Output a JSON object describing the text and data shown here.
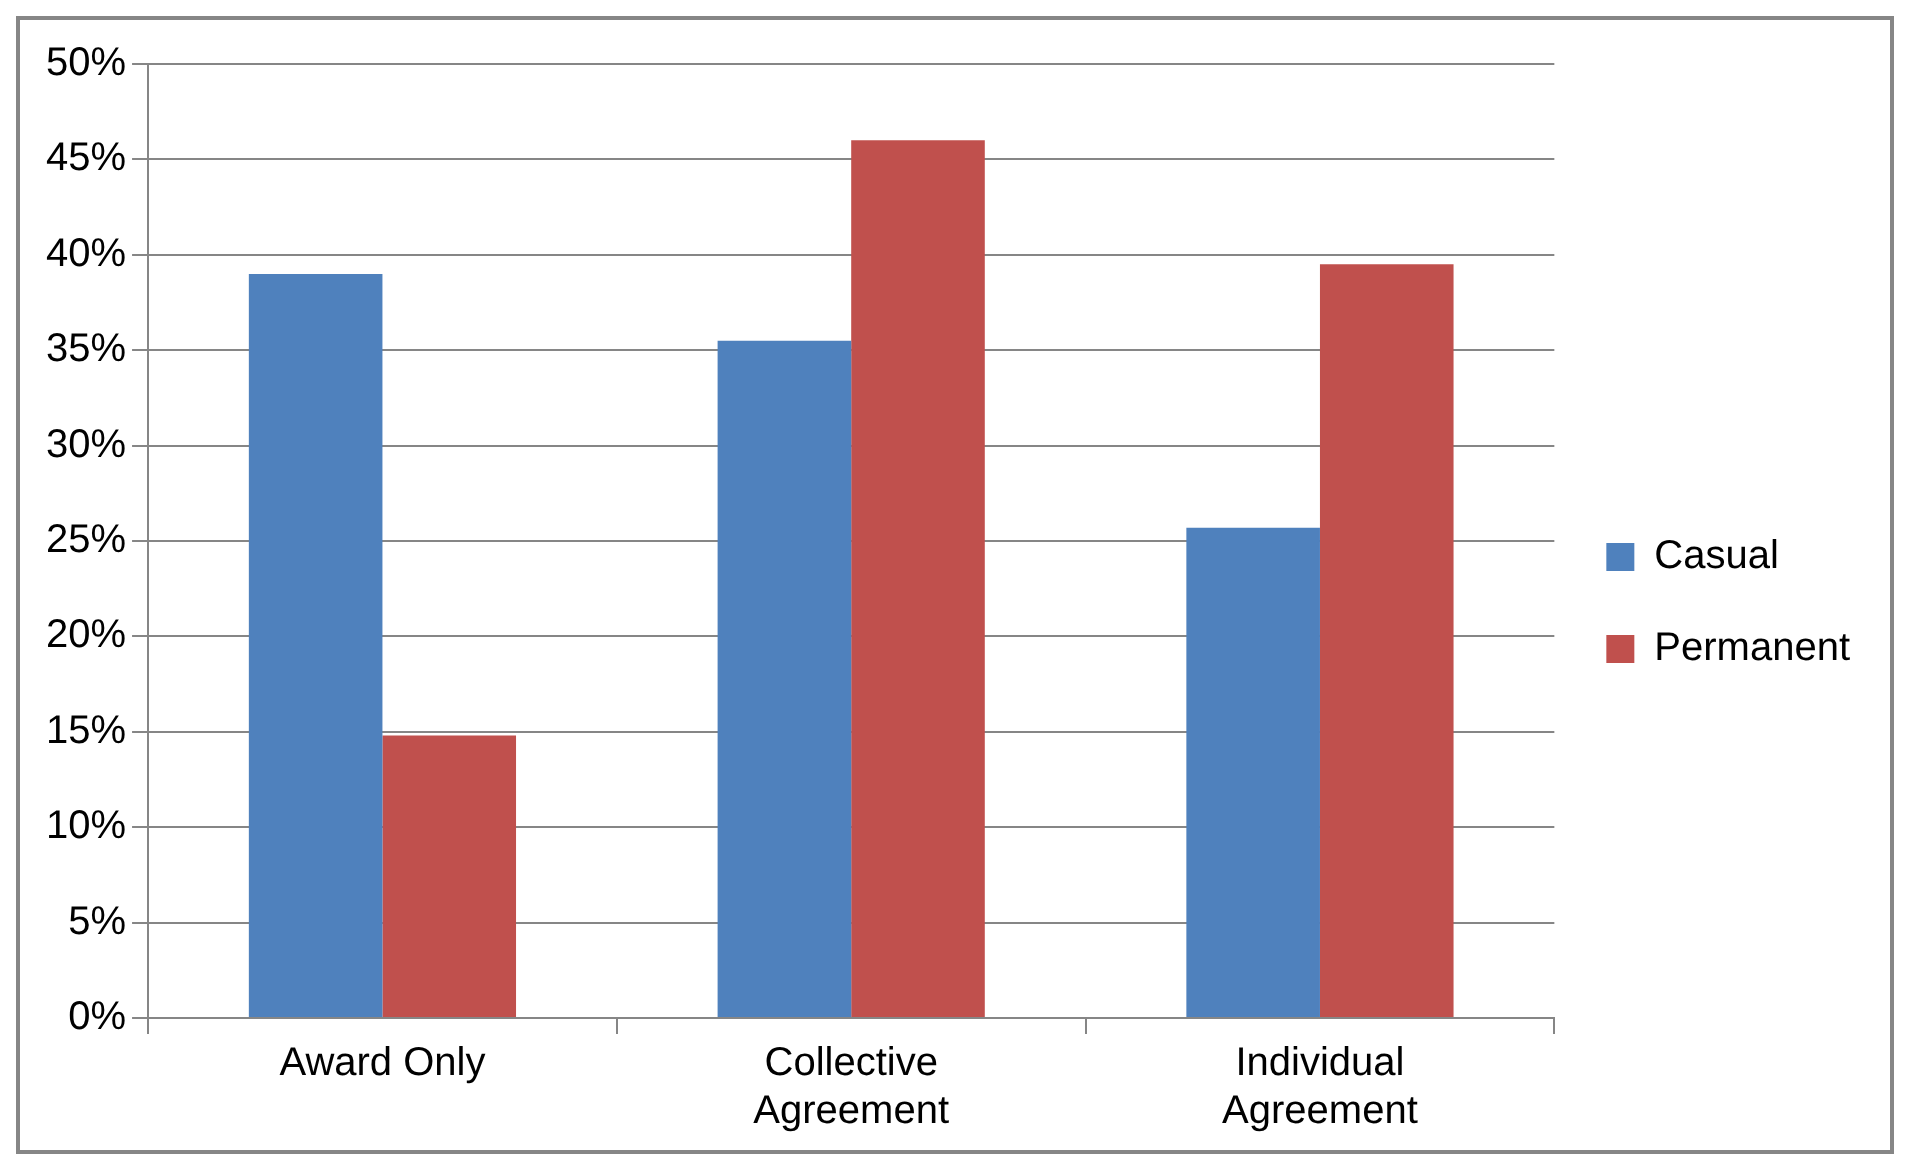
{
  "chart_data": {
    "type": "bar",
    "categories": [
      "Award Only",
      "Collective Agreement",
      "Individual Agreement"
    ],
    "series": [
      {
        "name": "Casual",
        "color": "#4f81bd",
        "values": [
          39,
          35.5,
          25.7
        ]
      },
      {
        "name": "Permanent",
        "color": "#c0504d",
        "values": [
          14.8,
          46,
          39.5
        ]
      }
    ],
    "ylim": [
      0,
      50
    ],
    "yticks": [
      {
        "value": 0,
        "label": "0%"
      },
      {
        "value": 5,
        "label": "5%"
      },
      {
        "value": 10,
        "label": "10%"
      },
      {
        "value": 15,
        "label": "15%"
      },
      {
        "value": 20,
        "label": "20%"
      },
      {
        "value": 25,
        "label": "25%"
      },
      {
        "value": 30,
        "label": "30%"
      },
      {
        "value": 35,
        "label": "35%"
      },
      {
        "value": 40,
        "label": "40%"
      },
      {
        "value": 45,
        "label": "45%"
      },
      {
        "value": 50,
        "label": "50%"
      }
    ],
    "grid": "y",
    "legend": "right"
  }
}
